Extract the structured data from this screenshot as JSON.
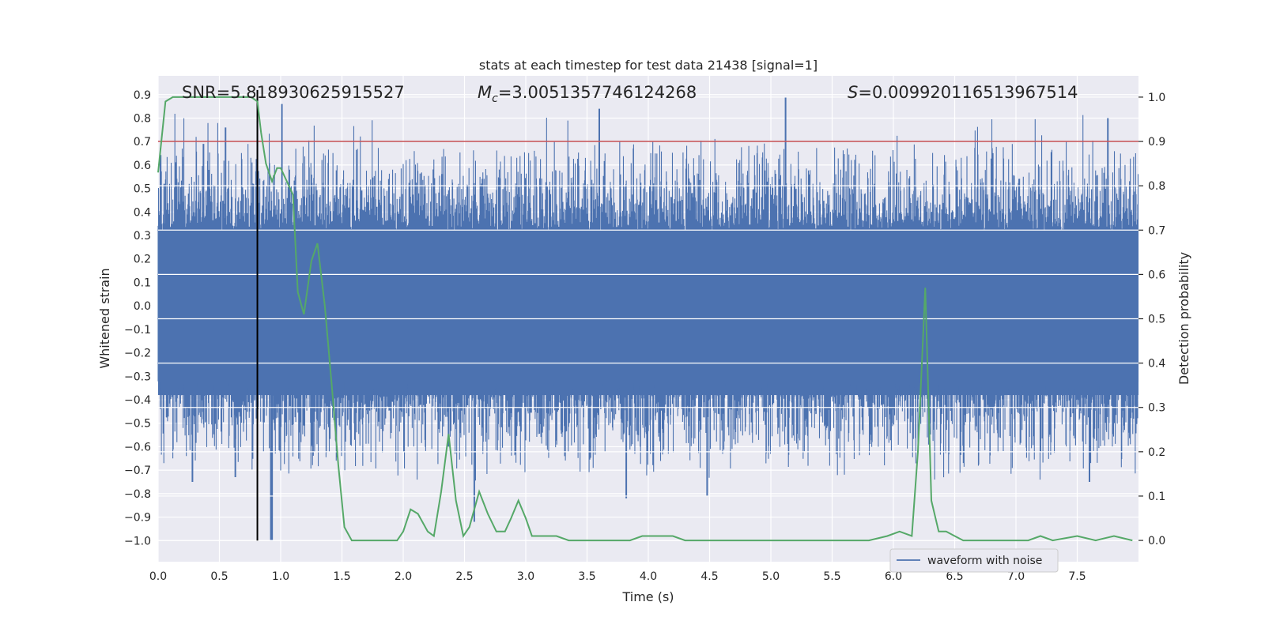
{
  "chart_data": {
    "type": "line",
    "title": "stats at each timestep for test data 21438 [signal=1]",
    "xlabel": "Time (s)",
    "ylabel_left": "Whitened strain",
    "ylabel_right": "Detection probability",
    "xlim": [
      0,
      8
    ],
    "ylim_left": [
      -1.09,
      0.98
    ],
    "ylim_right": [
      -0.048,
      1.048
    ],
    "x_ticks": [
      "0.0",
      "0.5",
      "1.0",
      "1.5",
      "2.0",
      "2.5",
      "3.0",
      "3.5",
      "4.0",
      "4.5",
      "5.0",
      "5.5",
      "6.0",
      "6.5",
      "7.0",
      "7.5"
    ],
    "y_left_ticks": [
      "0.9",
      "0.8",
      "0.7",
      "0.6",
      "0.5",
      "0.4",
      "0.3",
      "0.2",
      "0.1",
      "0.0",
      "−0.1",
      "−0.2",
      "−0.3",
      "−0.4",
      "−0.5",
      "−0.6",
      "−0.7",
      "−0.8",
      "−0.9",
      "−1.0"
    ],
    "y_right_ticks": [
      "1.0",
      "0.9",
      "0.8",
      "0.7",
      "0.6",
      "0.5",
      "0.4",
      "0.3",
      "0.2",
      "0.1",
      "0.0"
    ],
    "grid": true,
    "legend": {
      "entry": "waveform with noise",
      "placement": "lower-right"
    },
    "annotations": {
      "snr": "SNR=5.818930625915527",
      "mc_symbol": "M",
      "mc_sub": "c",
      "mc_value": "=3.0051357746124268",
      "s_symbol": "S",
      "s_value": "=0.009920116513967514"
    },
    "colors": {
      "waveform": "#4c72b0",
      "probability": "#55a868",
      "threshold": "#c44e52",
      "marker": "#000000",
      "axes_bg": "#eaeaf2",
      "grid": "#ffffff"
    },
    "threshold_probability": 0.9,
    "marker_time": 0.81,
    "waveform_envelope": {
      "core_amplitude": 0.32,
      "typical_peak": 0.55,
      "max_peak": 0.89,
      "min_trough": -1.0
    },
    "series": [
      {
        "name": "waveform with noise",
        "x": [
          0.05,
          0.37,
          0.55,
          0.81,
          0.92,
          1.01,
          3.6,
          5.12,
          7.75,
          0.28,
          0.63,
          0.93,
          2.37,
          2.58,
          3.82,
          4.48,
          7.6
        ],
        "values": [
          0.52,
          0.69,
          0.76,
          0.79,
          -1.0,
          0.86,
          0.84,
          0.89,
          0.8,
          -0.75,
          -0.73,
          -1.0,
          -0.6,
          -0.92,
          -0.82,
          -0.81,
          -0.75
        ]
      },
      {
        "name": "",
        "x": [
          0.0,
          0.06,
          0.12,
          0.2,
          0.3,
          0.4,
          0.5,
          0.6,
          0.7,
          0.76,
          0.81,
          0.84,
          0.88,
          0.93,
          0.97,
          1.0,
          1.05,
          1.1,
          1.14,
          1.19,
          1.25,
          1.3,
          1.36,
          1.42,
          1.47,
          1.52,
          1.58,
          1.65,
          1.75,
          1.85,
          1.95,
          2.0,
          2.06,
          2.12,
          2.2,
          2.25,
          2.31,
          2.37,
          2.43,
          2.49,
          2.54,
          2.62,
          2.69,
          2.76,
          2.83,
          2.88,
          2.94,
          3.0,
          3.05,
          3.13,
          3.25,
          3.35,
          3.5,
          3.7,
          3.85,
          3.95,
          4.05,
          4.2,
          4.3,
          4.5,
          4.8,
          5.1,
          5.5,
          5.8,
          5.95,
          6.05,
          6.15,
          6.2,
          6.26,
          6.31,
          6.37,
          6.43,
          6.5,
          6.57,
          6.7,
          6.9,
          7.1,
          7.2,
          7.3,
          7.5,
          7.65,
          7.8,
          7.95
        ],
        "values": [
          0.83,
          0.99,
          1.0,
          1.0,
          1.0,
          1.0,
          1.0,
          1.0,
          1.0,
          1.0,
          0.99,
          0.92,
          0.85,
          0.81,
          0.84,
          0.84,
          0.81,
          0.78,
          0.56,
          0.51,
          0.63,
          0.67,
          0.53,
          0.34,
          0.17,
          0.03,
          0.0,
          0.0,
          0.0,
          0.0,
          0.0,
          0.02,
          0.07,
          0.06,
          0.02,
          0.01,
          0.11,
          0.24,
          0.09,
          0.01,
          0.03,
          0.11,
          0.06,
          0.02,
          0.02,
          0.05,
          0.09,
          0.05,
          0.01,
          0.01,
          0.01,
          0.0,
          0.0,
          0.0,
          0.0,
          0.01,
          0.01,
          0.01,
          0.0,
          0.0,
          0.0,
          0.0,
          0.0,
          0.0,
          0.01,
          0.02,
          0.01,
          0.2,
          0.57,
          0.09,
          0.02,
          0.02,
          0.01,
          0.0,
          0.0,
          0.0,
          0.0,
          0.01,
          0.0,
          0.01,
          0.0,
          0.01,
          0.0
        ]
      }
    ]
  }
}
